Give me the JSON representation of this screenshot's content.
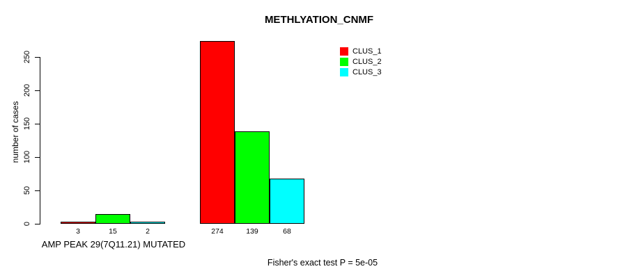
{
  "chart_data": {
    "type": "bar",
    "title": "METHLYATION_CNMF",
    "xlabel": "AMP PEAK 29(7Q11.21) MUTATED",
    "ylabel": "number of cases",
    "ylim": [
      0,
      250
    ],
    "yticks": [
      0,
      50,
      100,
      150,
      200,
      250
    ],
    "grid": false,
    "legend_position": "top-right",
    "background": "#ffffff",
    "axis_color": "#000000",
    "bar_border_color": "#000000",
    "groups": [
      {
        "name": "AMP PEAK 29(7Q11.21) MUTATED",
        "values": [
          3,
          15,
          2
        ],
        "labels": [
          "3",
          "15",
          "2"
        ]
      },
      {
        "name": "",
        "values": [
          274,
          139,
          68
        ],
        "labels": [
          "274",
          "139",
          "68"
        ]
      }
    ],
    "series": [
      {
        "name": "CLUS_1",
        "color": "#FF0000",
        "values": [
          3,
          274
        ]
      },
      {
        "name": "CLUS_2",
        "color": "#00FF00",
        "values": [
          15,
          139
        ]
      },
      {
        "name": "CLUS_3",
        "color": "#00FFFF",
        "values": [
          2,
          68
        ]
      }
    ],
    "annotation": "Fisher's exact test P = 5e-05"
  }
}
